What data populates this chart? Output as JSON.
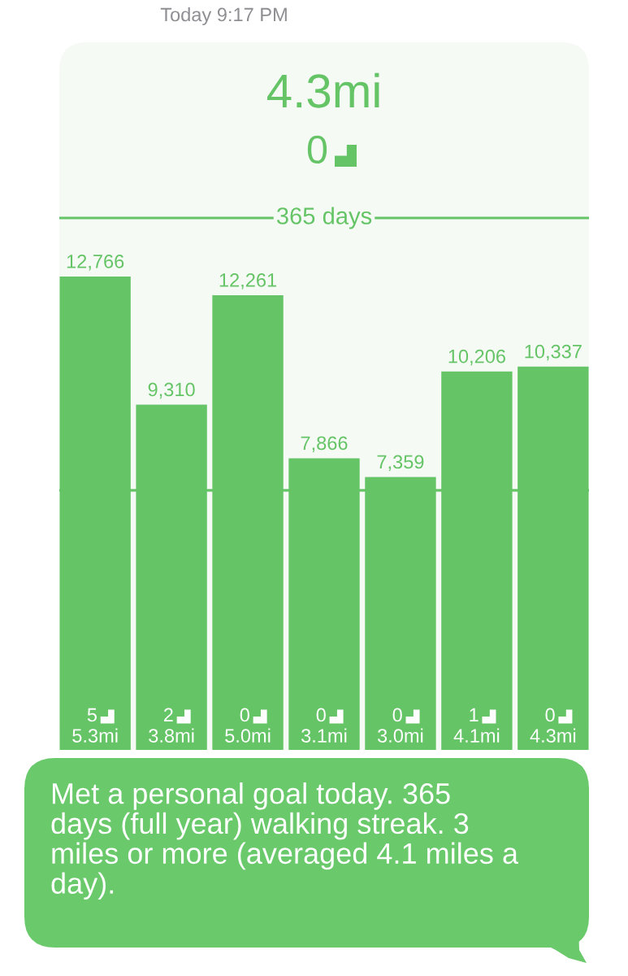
{
  "chart_data": {
    "type": "bar",
    "title": "365 days",
    "subtitle": "4.3mi",
    "categories": [
      "5.3mi",
      "3.8mi",
      "5.0mi",
      "3.1mi",
      "3.0mi",
      "4.1mi",
      "4.3mi"
    ],
    "values": [
      12766,
      9310,
      12261,
      7866,
      7359,
      10206,
      10337
    ],
    "value_labels": [
      "12,766",
      "9,310",
      "12,261",
      "7,866",
      "7,359",
      "10,206",
      "10,337"
    ],
    "color": "#65c466",
    "ref_lines": [
      {
        "axis": "y",
        "value": 7000,
        "color": "#65c466"
      }
    ],
    "annotations": [
      "Today 9:17 PM",
      "0",
      "5",
      "2",
      "0",
      "0",
      "0",
      "1",
      "0",
      "Met a personal goal today. 365\ndays (full year) walking streak. 3\nmiles or more (averaged 4.1 miles a\nday)."
    ]
  }
}
